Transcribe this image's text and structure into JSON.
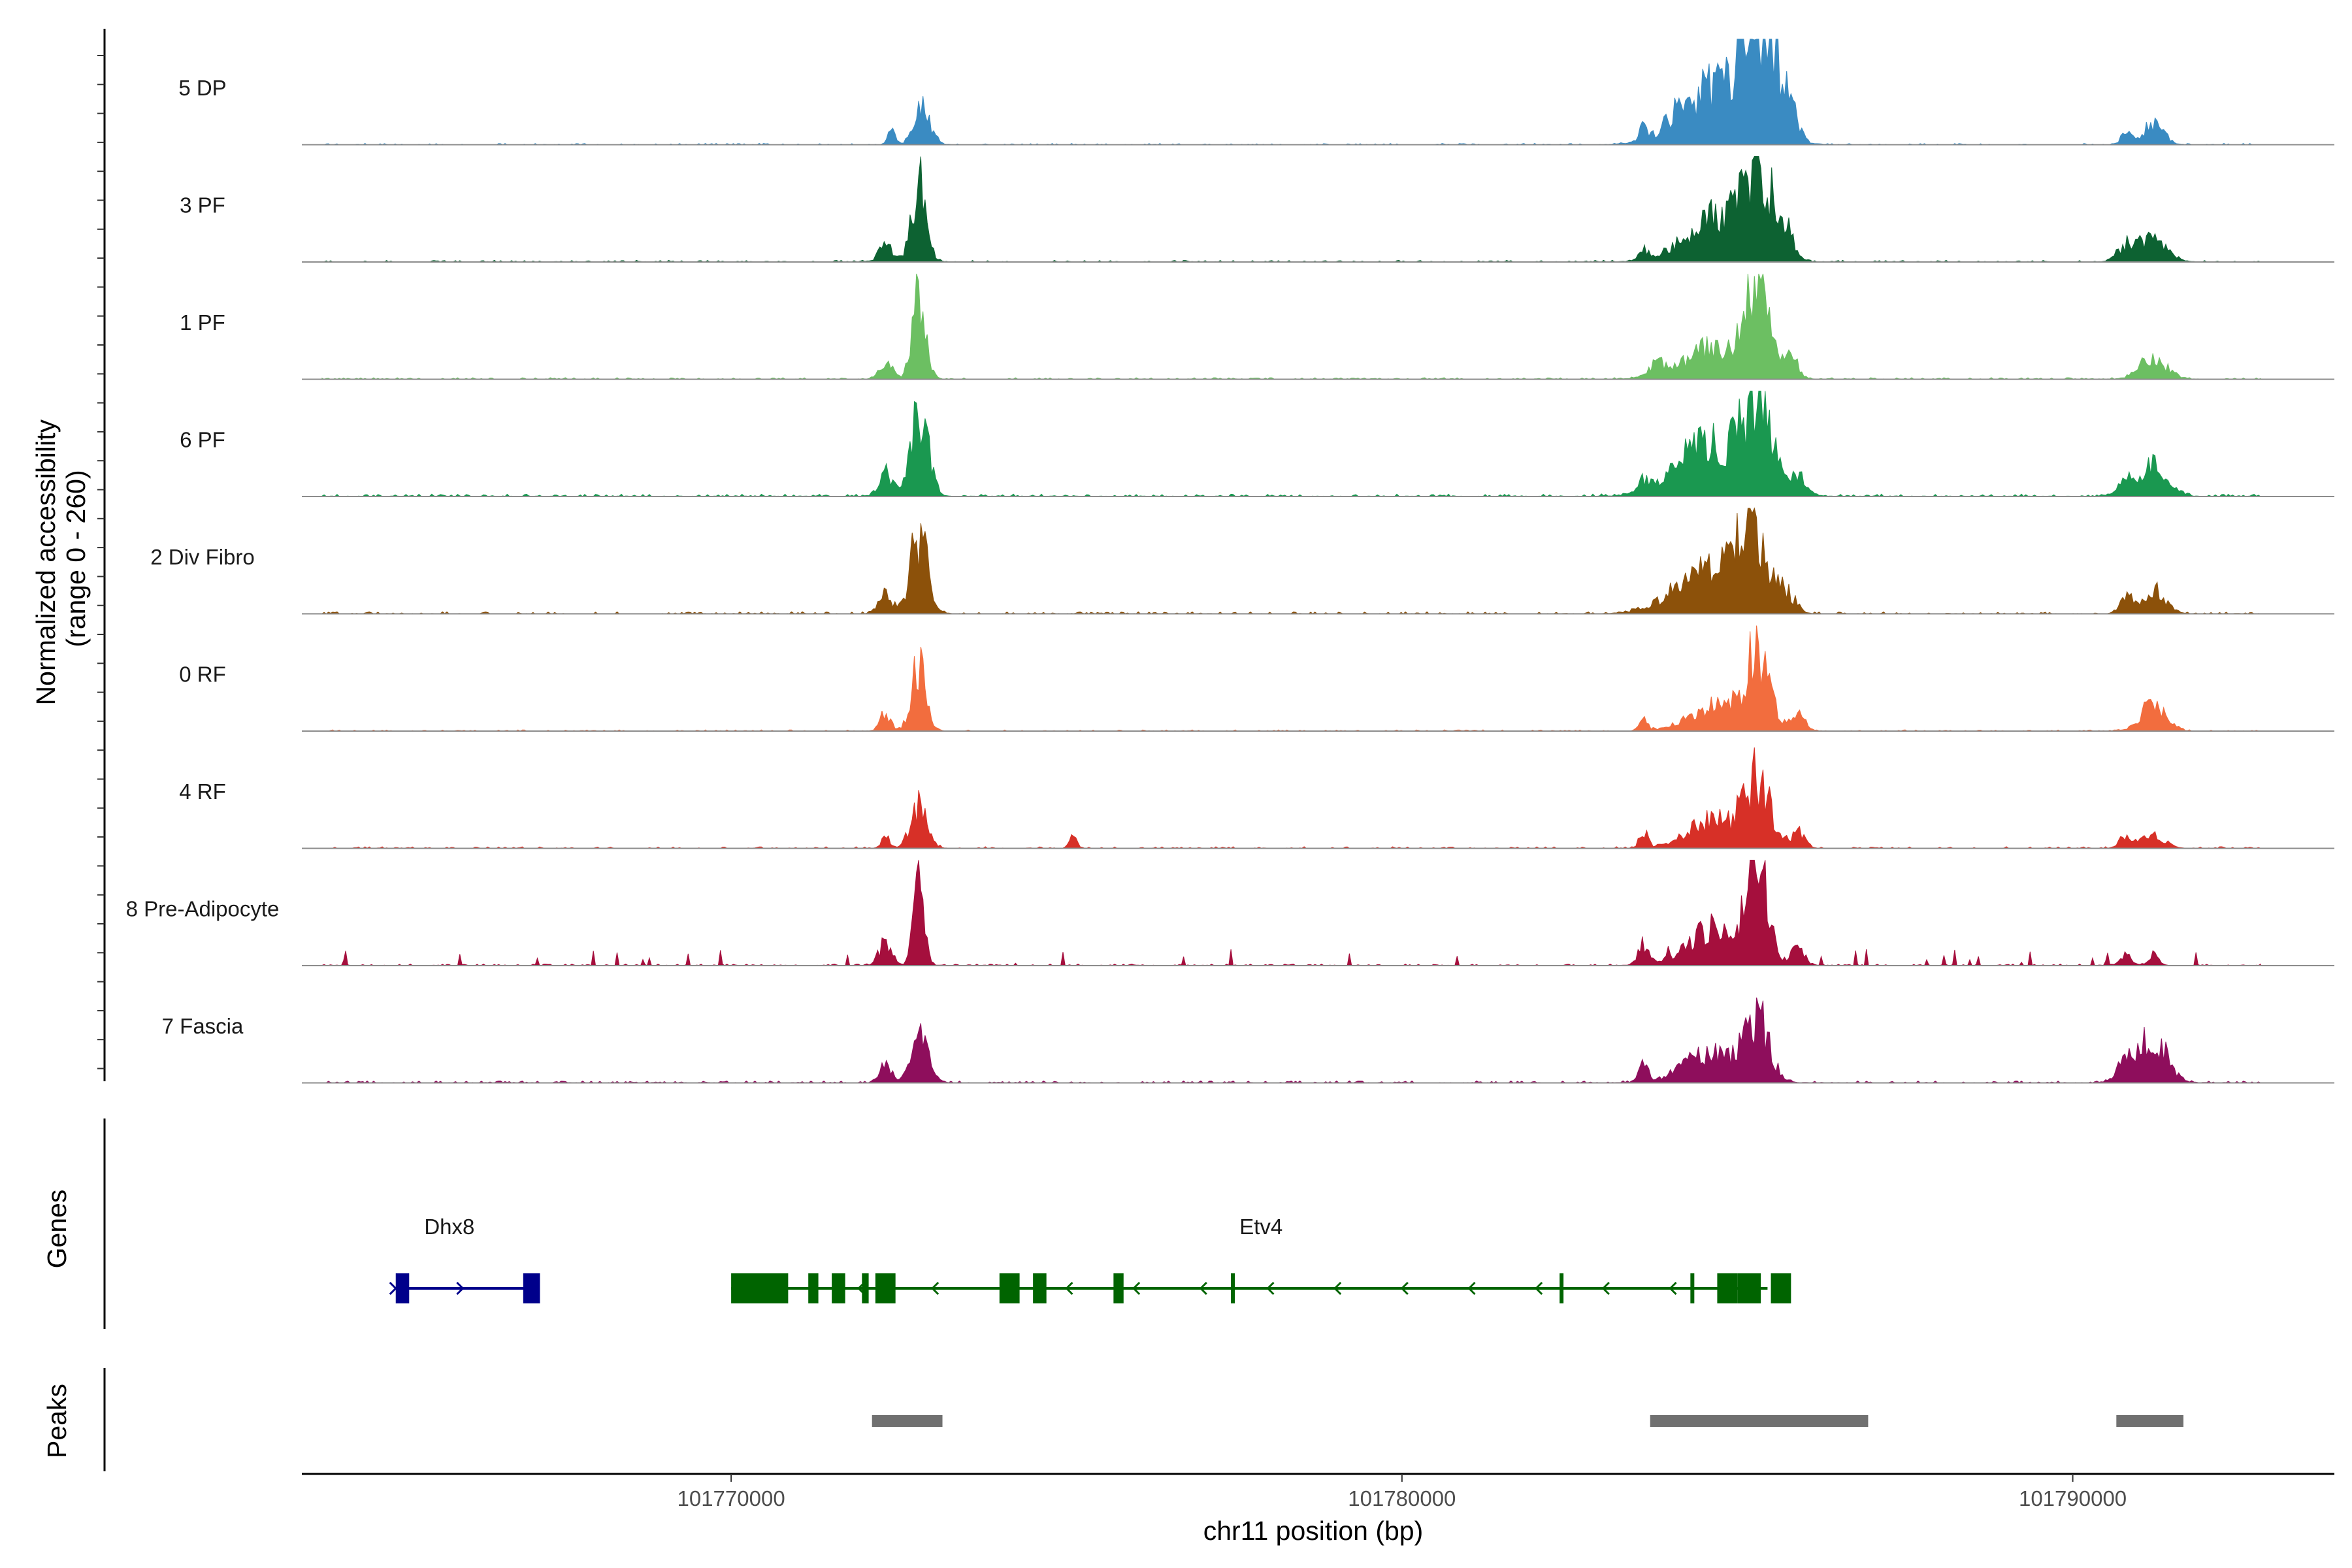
{
  "chart_data": {
    "type": "area",
    "title": "",
    "xlabel": "chr11 position (bp)",
    "ylabel_line1": "Normalized accessibility",
    "ylabel_line2": "(range 0 - 260)",
    "ylim": [
      0,
      260
    ],
    "xlim": [
      101763600,
      101793900
    ],
    "x_ticks": [
      101770000,
      101780000,
      101790000
    ],
    "x_tick_labels": [
      "101770000",
      "101780000",
      "101790000"
    ],
    "tracks": [
      {
        "name": "5 DP",
        "color": "#3a8bc2",
        "peaks": [
          [
            101772400,
            35,
            60
          ],
          [
            101772850,
            90,
            120
          ],
          [
            101783600,
            40,
            50
          ],
          [
            101784100,
            20,
            180
          ],
          [
            101784700,
            140,
            500
          ],
          [
            101785300,
            250,
            230
          ],
          [
            101785700,
            90,
            150
          ],
          [
            101790800,
            30,
            80
          ],
          [
            101791200,
            50,
            150
          ]
        ],
        "noise": 3,
        "seed": 11
      },
      {
        "name": "3 PF",
        "color": "#0d6232",
        "peaks": [
          [
            101772300,
            40,
            100
          ],
          [
            101772800,
            190,
            110
          ],
          [
            101783600,
            30,
            60
          ],
          [
            101784700,
            110,
            450
          ],
          [
            101785300,
            200,
            220
          ],
          [
            101785700,
            60,
            120
          ],
          [
            101790800,
            40,
            130
          ],
          [
            101791200,
            60,
            200
          ]
        ],
        "noise": 4,
        "seed": 23
      },
      {
        "name": "1 PF",
        "color": "#6cbf62",
        "peaks": [
          [
            101772300,
            50,
            90
          ],
          [
            101772800,
            205,
            100
          ],
          [
            101783800,
            30,
            130
          ],
          [
            101784700,
            80,
            450
          ],
          [
            101785300,
            230,
            160
          ],
          [
            101785800,
            50,
            100
          ],
          [
            101791200,
            50,
            200
          ]
        ],
        "noise": 4,
        "seed": 37
      },
      {
        "name": "6 PF",
        "color": "#1a9850",
        "peaks": [
          [
            101772300,
            60,
            100
          ],
          [
            101772800,
            220,
            130
          ],
          [
            101783600,
            25,
            60
          ],
          [
            101784600,
            130,
            500
          ],
          [
            101785300,
            200,
            200
          ],
          [
            101785900,
            40,
            150
          ],
          [
            101790800,
            30,
            130
          ],
          [
            101791200,
            80,
            200
          ]
        ],
        "noise": 6,
        "seed": 41
      },
      {
        "name": "2 Div Fibro",
        "color": "#8c510a",
        "peaks": [
          [
            101772300,
            45,
            100
          ],
          [
            101772800,
            190,
            130
          ],
          [
            101784500,
            100,
            450
          ],
          [
            101785200,
            210,
            220
          ],
          [
            101785700,
            50,
            150
          ],
          [
            101790800,
            35,
            100
          ],
          [
            101791200,
            60,
            170
          ]
        ],
        "noise": 5,
        "seed": 53
      },
      {
        "name": "0 RF",
        "color": "#f26d3e",
        "peaks": [
          [
            101772300,
            40,
            80
          ],
          [
            101772800,
            160,
            110
          ],
          [
            101783600,
            25,
            60
          ],
          [
            101784700,
            60,
            400
          ],
          [
            101785300,
            180,
            170
          ],
          [
            101785900,
            40,
            110
          ],
          [
            101791200,
            70,
            180
          ]
        ],
        "noise": 3,
        "seed": 67
      },
      {
        "name": "4 RF",
        "color": "#d73027",
        "peaks": [
          [
            101772300,
            25,
            70
          ],
          [
            101772800,
            110,
            120
          ],
          [
            101775100,
            25,
            60
          ],
          [
            101783600,
            40,
            60
          ],
          [
            101784700,
            70,
            420
          ],
          [
            101785300,
            150,
            180
          ],
          [
            101785900,
            40,
            100
          ],
          [
            101790800,
            30,
            100
          ],
          [
            101791200,
            30,
            170
          ]
        ],
        "noise": 4,
        "seed": 79
      },
      {
        "name": "8 Pre-Adipocyte",
        "color": "#a50f3d",
        "peaks": [
          [
            101772300,
            60,
            90
          ],
          [
            101772800,
            210,
            80
          ],
          [
            101783600,
            40,
            80
          ],
          [
            101784700,
            90,
            420
          ],
          [
            101785300,
            250,
            140
          ],
          [
            101785900,
            40,
            100
          ],
          [
            101790800,
            30,
            80
          ],
          [
            101791200,
            25,
            80
          ]
        ],
        "noise": 4,
        "spikes": 40,
        "seed": 83
      },
      {
        "name": "7 Fascia",
        "color": "#8e0e5c",
        "peaks": [
          [
            101772300,
            40,
            90
          ],
          [
            101772800,
            130,
            130
          ],
          [
            101783600,
            40,
            70
          ],
          [
            101784600,
            70,
            400
          ],
          [
            101785300,
            150,
            180
          ],
          [
            101790800,
            50,
            140
          ],
          [
            101791200,
            110,
            200
          ]
        ],
        "noise": 5,
        "seed": 97
      }
    ],
    "genes": [
      {
        "name": "Dhx8",
        "strand": "+",
        "color": "#00008b",
        "start": 101765000,
        "end": 101767150,
        "exons": [
          [
            101765000,
            101765200
          ],
          [
            101766900,
            101767150
          ]
        ],
        "arrows": [
          101765000,
          101766000
        ]
      },
      {
        "name": "Etv4",
        "strand": "-",
        "color": "#006400",
        "start": 101770000,
        "end": 101785450,
        "exons": [
          [
            101770000,
            101770850
          ],
          [
            101771150,
            101771300
          ],
          [
            101771500,
            101771700
          ],
          [
            101771950,
            101772050
          ],
          [
            101772150,
            101772450
          ],
          [
            101774000,
            101774300
          ],
          [
            101774500,
            101774700
          ],
          [
            101775700,
            101775850
          ],
          [
            101777450,
            101777500
          ],
          [
            101782350,
            101782400
          ],
          [
            101784300,
            101784350
          ],
          [
            101784700,
            101785000
          ],
          [
            101785000,
            101785350
          ],
          [
            101785500,
            101785800
          ]
        ],
        "arrows": [
          101771900,
          101773000,
          101775000,
          101776000,
          101777000,
          101778000,
          101779000,
          101780000,
          101781000,
          101782000,
          101783000,
          101784000
        ]
      }
    ],
    "peak_regions": [
      [
        101772100,
        101773150
      ],
      [
        101783700,
        101786950
      ],
      [
        101790650,
        101791650
      ]
    ]
  },
  "labels": {
    "genes_panel": "Genes",
    "peaks_panel": "Peaks"
  }
}
